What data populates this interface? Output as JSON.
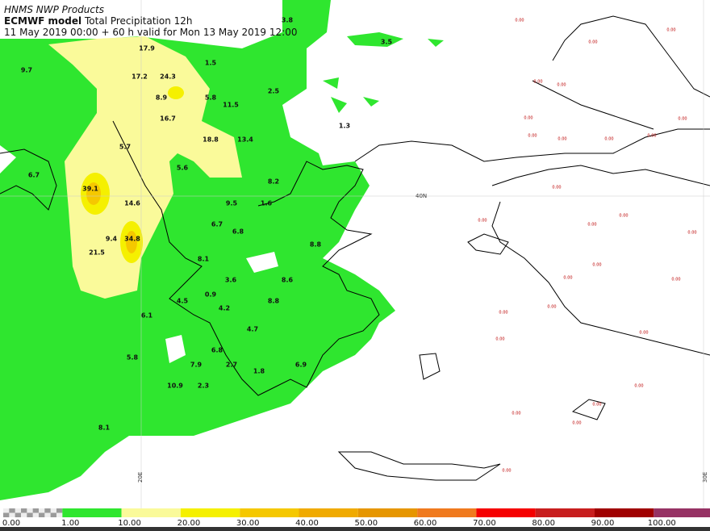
{
  "header": {
    "producer": "HNMS NWP Products",
    "model": "ECMWF model",
    "field": "Total Precipitation 12h",
    "validity": "11 May 2019 00:00 + 60 h valid for Mon 13 May 2019 12:00"
  },
  "map": {
    "grid_labels": [
      "40N",
      "20E",
      "30E"
    ],
    "precip_labels": [
      "3.8",
      "3.5",
      "17.9",
      "9.7",
      "1.5",
      "17.2",
      "24.3",
      "8.9",
      "5.8",
      "11.5",
      "2.5",
      "16.7",
      "1.3",
      "18.8",
      "13.4",
      "5.7",
      "5.6",
      "6.7",
      "8.2",
      "39.1",
      "14.6",
      "9.5",
      "1.6",
      "6.7",
      "6.8",
      "9.4",
      "34.8",
      "21.5",
      "8.8",
      "8.1",
      "3.6",
      "8.6",
      "0.9",
      "4.5",
      "8.8",
      "4.2",
      "6.1",
      "4.7",
      "6.8",
      "5.8",
      "7.9",
      "2.7",
      "1.8",
      "6.9",
      "10.9",
      "2.3",
      "8.1"
    ],
    "zero_labels": [
      "0.00",
      "0.00",
      "0.00",
      "0.00",
      "0.00",
      "0.00",
      "0.00",
      "0.00",
      "0.00",
      "0.00",
      "0.00",
      "0.00",
      "0.00",
      "0.00",
      "0.00",
      "0.00",
      "0.00",
      "0.00",
      "0.00",
      "0.00",
      "0.00",
      "0.00",
      "0.00",
      "0.00",
      "0.00",
      "0.00",
      "0.00",
      "0.00"
    ]
  },
  "legend": {
    "ticks": [
      "0.00",
      "1.00",
      "10.00",
      "20.00",
      "30.00",
      "40.00",
      "50.00",
      "60.00",
      "70.00",
      "80.00",
      "90.00",
      "100.00"
    ],
    "colors": [
      "#9a9a9a",
      "#2fe62f",
      "#fafa9a",
      "#f5f000",
      "#f5c800",
      "#f0aa00",
      "#e69600",
      "#f07a1e",
      "#f50000",
      "#c81e1e",
      "#a00000",
      "#963264"
    ]
  }
}
